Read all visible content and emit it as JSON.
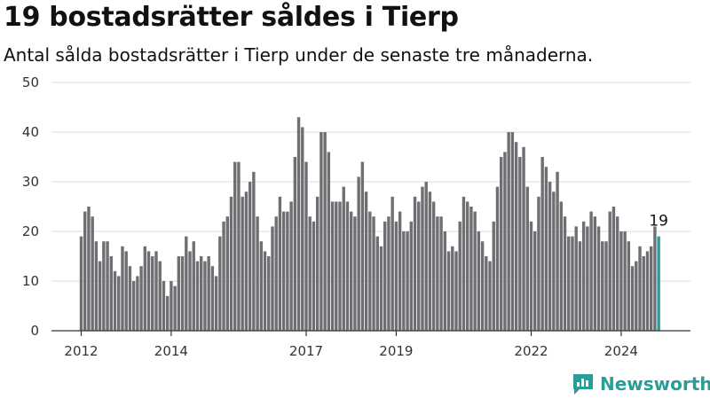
{
  "header": {
    "title": "19 bostadsrätter såldes i Tierp",
    "subtitle": "Antal sålda bostadsrätter i Tierp under de senaste tre månaderna."
  },
  "brand": {
    "name": "Newsworthy",
    "logo_icon": "newsworthy-logo-icon",
    "color": "#2a9d96"
  },
  "chart_data": {
    "type": "bar",
    "x_start": "2012-01",
    "x_step": "month",
    "xticks": [
      {
        "label": "2012",
        "index": 0
      },
      {
        "label": "2014",
        "index": 24
      },
      {
        "label": "2017",
        "index": 60
      },
      {
        "label": "2019",
        "index": 84
      },
      {
        "label": "2022",
        "index": 120
      },
      {
        "label": "2024",
        "index": 144
      }
    ],
    "yticks": [
      0,
      10,
      20,
      30,
      40,
      50
    ],
    "ylim": [
      0,
      50
    ],
    "grid": true,
    "bar_color": "#6f6f73",
    "highlight_color": "#2a9d96",
    "highlight_last": true,
    "last_label": "19",
    "values": [
      19,
      24,
      25,
      23,
      18,
      14,
      18,
      18,
      15,
      12,
      11,
      17,
      16,
      13,
      10,
      11,
      13,
      17,
      16,
      15,
      16,
      14,
      10,
      7,
      10,
      9,
      15,
      15,
      19,
      16,
      18,
      14,
      15,
      14,
      15,
      13,
      11,
      19,
      22,
      23,
      27,
      34,
      34,
      27,
      28,
      30,
      32,
      23,
      18,
      16,
      15,
      21,
      23,
      27,
      24,
      24,
      26,
      35,
      43,
      41,
      34,
      23,
      22,
      27,
      40,
      40,
      36,
      26,
      26,
      26,
      29,
      26,
      24,
      23,
      31,
      34,
      28,
      24,
      23,
      19,
      17,
      22,
      23,
      27,
      22,
      24,
      20,
      20,
      22,
      27,
      26,
      29,
      30,
      28,
      26,
      23,
      23,
      20,
      16,
      17,
      16,
      22,
      27,
      26,
      25,
      24,
      20,
      18,
      15,
      14,
      22,
      29,
      35,
      36,
      40,
      40,
      38,
      35,
      37,
      29,
      22,
      20,
      27,
      35,
      33,
      30,
      28,
      32,
      26,
      23,
      19,
      19,
      21,
      18,
      22,
      21,
      24,
      23,
      21,
      18,
      18,
      24,
      25,
      23,
      20,
      20,
      18,
      13,
      14,
      17,
      15,
      16,
      17,
      21,
      19
    ]
  }
}
